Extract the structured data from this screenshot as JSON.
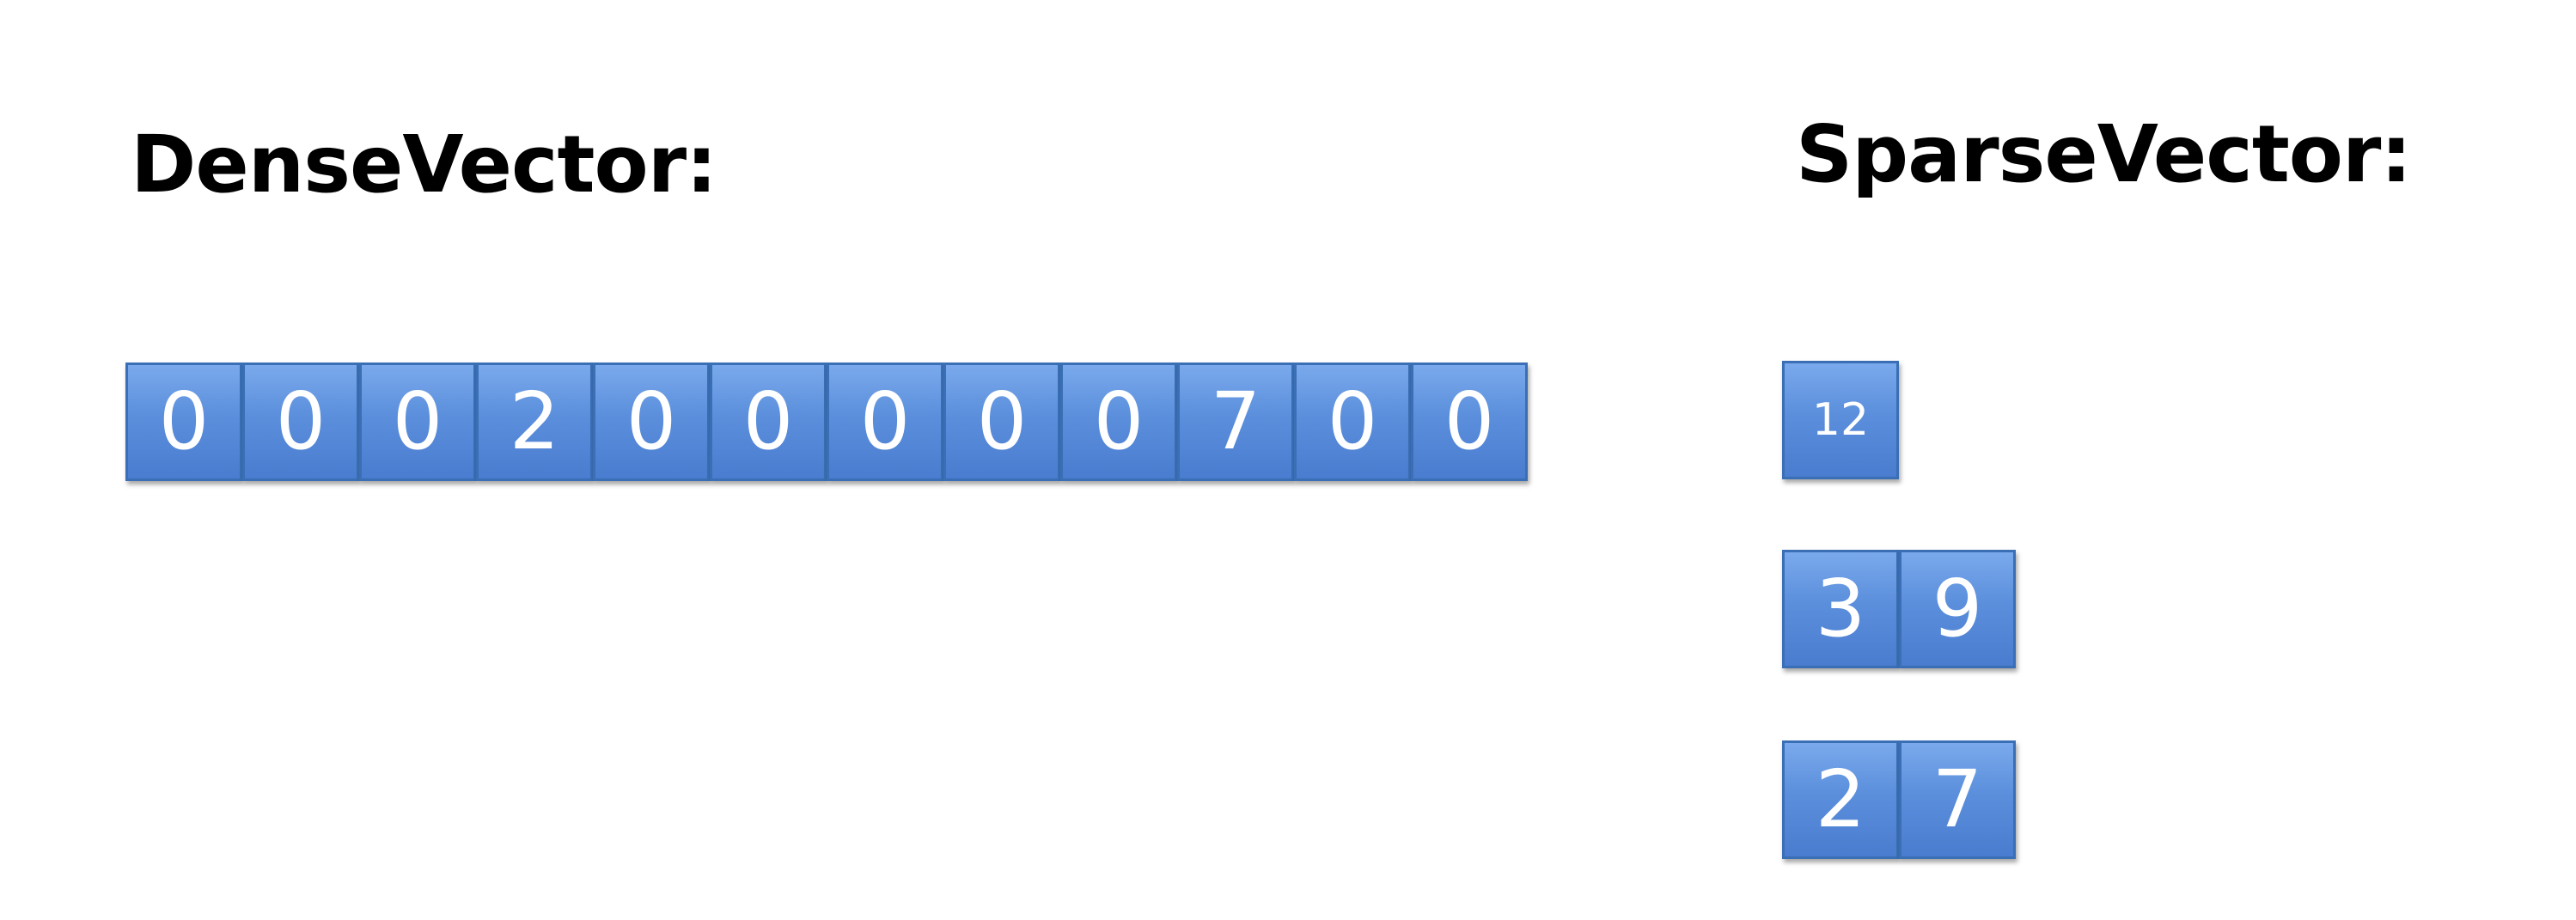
{
  "dense": {
    "title": "DenseVector:",
    "values": [
      "0",
      "0",
      "0",
      "2",
      "0",
      "0",
      "0",
      "0",
      "0",
      "7",
      "0",
      "0"
    ]
  },
  "sparse": {
    "title": "SparseVector:",
    "size": "12",
    "indices": [
      "3",
      "9"
    ],
    "values": [
      "2",
      "7"
    ]
  },
  "colors": {
    "cell_fill": "#5b8fdc",
    "cell_border": "#3a6fb5",
    "cell_text": "#ffffff",
    "title_text": "#000000"
  }
}
